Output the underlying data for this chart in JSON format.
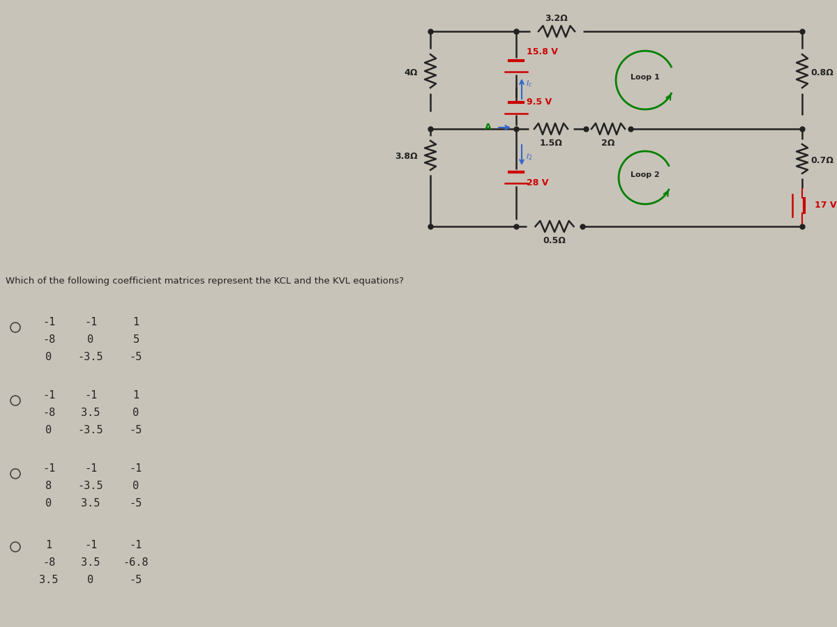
{
  "bg_color": "#c8c3b8",
  "question_text": "Which of the following coefficient matrices represent the KCL and the KVL equations?",
  "options": [
    {
      "matrix": [
        [
          "-1",
          "-1",
          "1"
        ],
        [
          "-8",
          "0",
          "5"
        ],
        [
          "0",
          "-3.5",
          "-5"
        ]
      ]
    },
    {
      "matrix": [
        [
          "-1",
          "-1",
          "1"
        ],
        [
          "-8",
          "3.5",
          "0"
        ],
        [
          "0",
          "-3.5",
          "-5"
        ]
      ]
    },
    {
      "matrix": [
        [
          "-1",
          "-1",
          "-1"
        ],
        [
          "8",
          "-3.5",
          "0"
        ],
        [
          "0",
          "3.5",
          "-5"
        ]
      ]
    },
    {
      "matrix": [
        [
          "1",
          "-1",
          "-1"
        ],
        [
          "-8",
          "3.5",
          "-6.8"
        ],
        [
          "3.5",
          "0",
          "-5"
        ]
      ]
    }
  ],
  "circuit": {
    "voltage_15_8": "15.8 V",
    "voltage_9_5": "9.5 V",
    "voltage_28": "28 V",
    "voltage_17": "17 V",
    "r_4": "4Ω",
    "r_3_2": "3.2Ω",
    "r_0_8": "0.8Ω",
    "r_1_5": "1.5Ω",
    "r_2": "2Ω",
    "r_0_7": "0.7Ω",
    "r_3_8": "3.8Ω",
    "r_0_5": "0.5Ω",
    "loop1": "Loop 1",
    "loop2": "Loop 2",
    "node_a": "A"
  }
}
